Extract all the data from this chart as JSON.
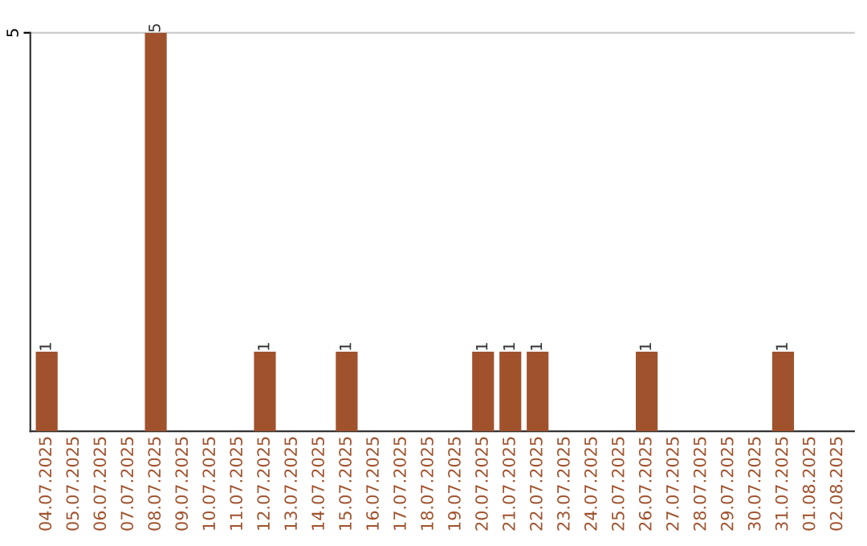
{
  "chart_data": {
    "type": "bar",
    "categories": [
      "04.07.2025",
      "05.07.2025",
      "06.07.2025",
      "07.07.2025",
      "08.07.2025",
      "09.07.2025",
      "10.07.2025",
      "11.07.2025",
      "12.07.2025",
      "13.07.2025",
      "14.07.2025",
      "15.07.2025",
      "16.07.2025",
      "17.07.2025",
      "18.07.2025",
      "19.07.2025",
      "20.07.2025",
      "21.07.2025",
      "22.07.2025",
      "23.07.2025",
      "24.07.2025",
      "25.07.2025",
      "26.07.2025",
      "27.07.2025",
      "28.07.2025",
      "29.07.2025",
      "30.07.2025",
      "31.07.2025",
      "01.08.2025",
      "02.08.2025"
    ],
    "values": [
      1,
      0,
      0,
      0,
      5,
      0,
      0,
      0,
      1,
      0,
      0,
      1,
      0,
      0,
      0,
      0,
      1,
      1,
      1,
      0,
      0,
      0,
      1,
      0,
      0,
      0,
      0,
      1,
      0,
      0
    ],
    "value_labels": [
      "1",
      null,
      null,
      null,
      "5",
      null,
      null,
      null,
      "1",
      null,
      null,
      "1",
      null,
      null,
      null,
      null,
      "1",
      "1",
      "1",
      null,
      null,
      null,
      "1",
      null,
      null,
      null,
      null,
      "1",
      null,
      null
    ],
    "color": "#a0522d",
    "ylim": [
      0,
      5
    ],
    "yticks": [
      5
    ],
    "ref_lines": [
      {
        "axis": "y",
        "value": 5,
        "color": "#cccccc"
      }
    ]
  }
}
